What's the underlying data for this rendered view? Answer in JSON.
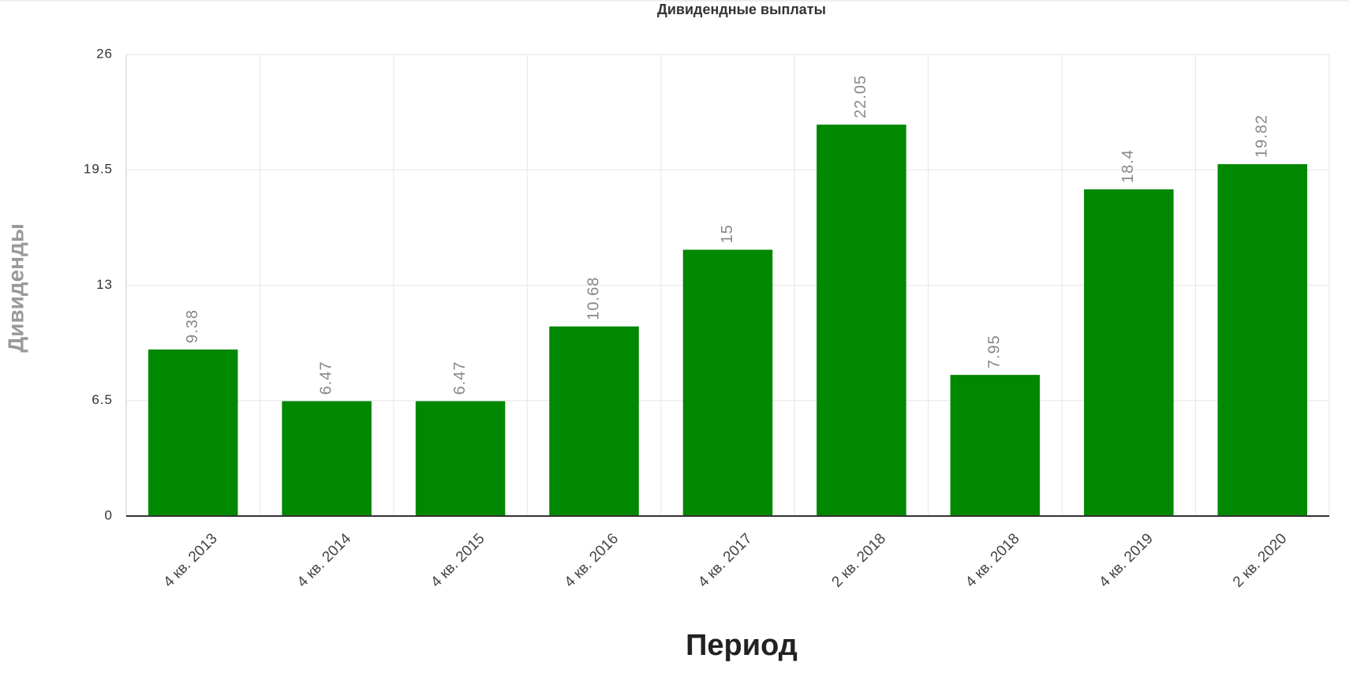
{
  "chart_data": {
    "type": "bar",
    "title": "Дивидендные выплаты",
    "x_label": "Период",
    "y_label": "Дивиденды",
    "categories": [
      "4 кв. 2013",
      "4 кв. 2014",
      "4 кв. 2015",
      "4 кв. 2016",
      "4 кв. 2017",
      "2 кв. 2018",
      "4 кв. 2018",
      "4 кв. 2019",
      "2 кв. 2020"
    ],
    "values": [
      9.38,
      6.47,
      6.47,
      10.68,
      15,
      22.05,
      7.95,
      18.4,
      19.82
    ],
    "color": "#008800",
    "ylim": [
      0,
      26
    ],
    "yticks": [
      0,
      6.5,
      13,
      19.5,
      26
    ],
    "grid": true
  }
}
